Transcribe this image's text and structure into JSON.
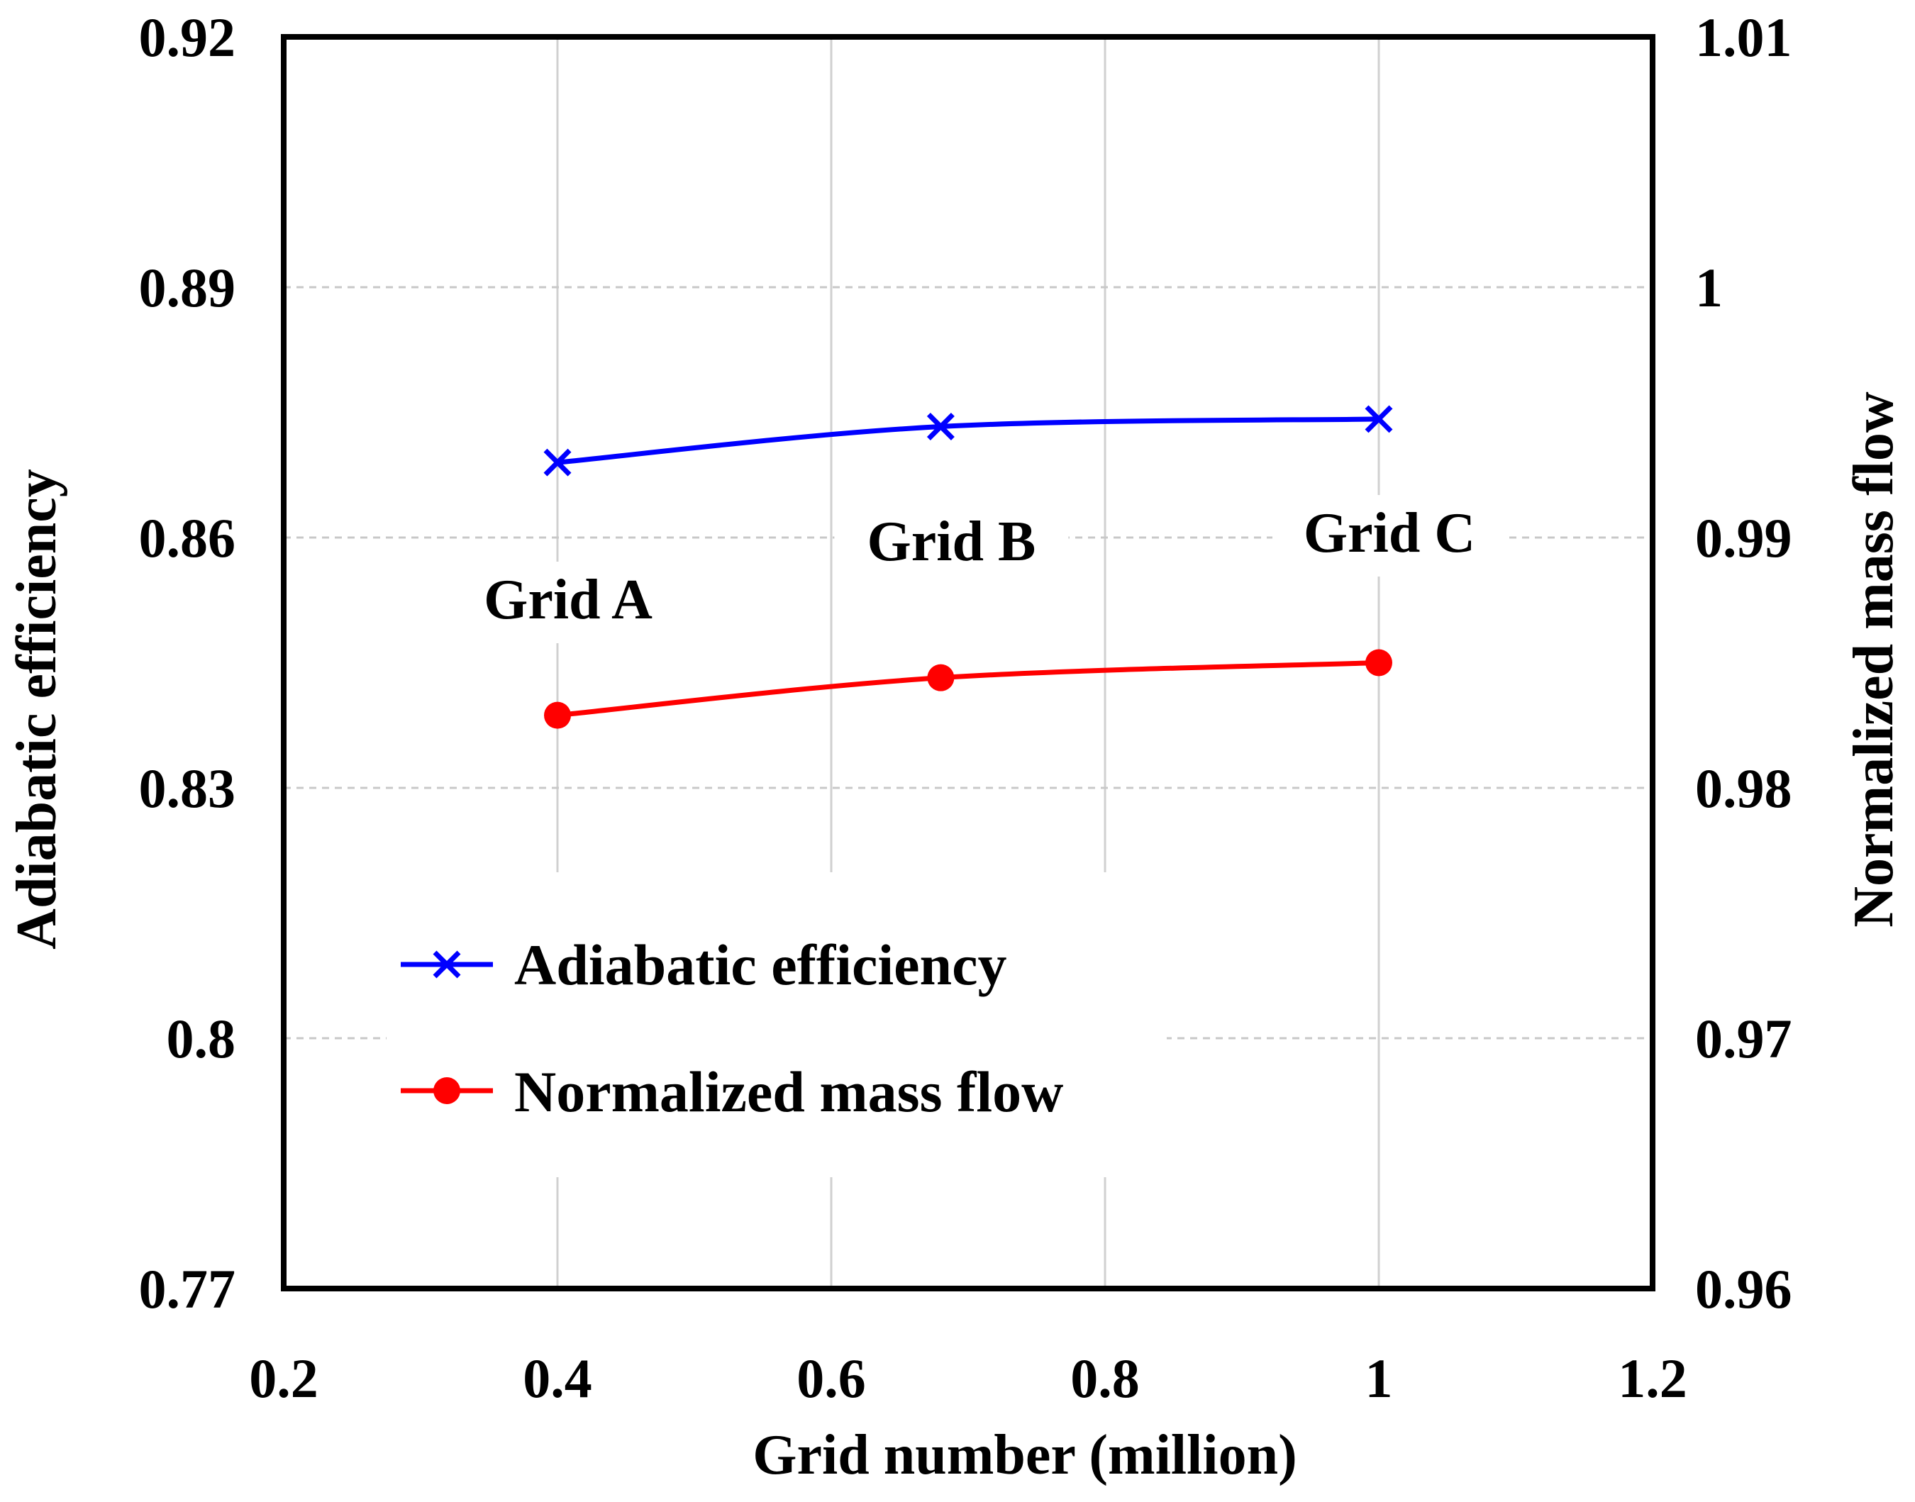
{
  "chart_data": {
    "type": "line",
    "title": "",
    "xlabel": "Grid number (million)",
    "ylabel": "Adiabatic efficiency",
    "y2label": "Normalized mass flow",
    "xlim": [
      0.2,
      1.2
    ],
    "ylim": [
      0.77,
      0.92
    ],
    "y2lim": [
      0.96,
      1.01
    ],
    "xticks": [
      "0.2",
      "0.4",
      "0.6",
      "0.8",
      "1",
      "1.2"
    ],
    "yticks": [
      "0.77",
      "0.8",
      "0.83",
      "0.86",
      "0.89",
      "0.92"
    ],
    "y2ticks": [
      "0.96",
      "0.97",
      "0.98",
      "0.99",
      "1",
      "1.01"
    ],
    "grid": true,
    "legend_position": "lower-left",
    "series": [
      {
        "name": "Adiabatic efficiency",
        "axis": "left",
        "marker": "x",
        "color": "#0000ff",
        "x": [
          0.4,
          0.68,
          1.0
        ],
        "values": [
          0.869,
          0.8733,
          0.8742
        ]
      },
      {
        "name": "Normalized mass flow",
        "axis": "right",
        "marker": "circle",
        "color": "#ff0000",
        "x": [
          0.4,
          0.68,
          1.0
        ],
        "values": [
          0.9829,
          0.9844,
          0.985
        ]
      }
    ],
    "annotations": [
      {
        "text": "Grid A",
        "x": 0.4
      },
      {
        "text": "Grid B",
        "x": 0.68
      },
      {
        "text": "Grid C",
        "x": 1.0
      }
    ]
  }
}
